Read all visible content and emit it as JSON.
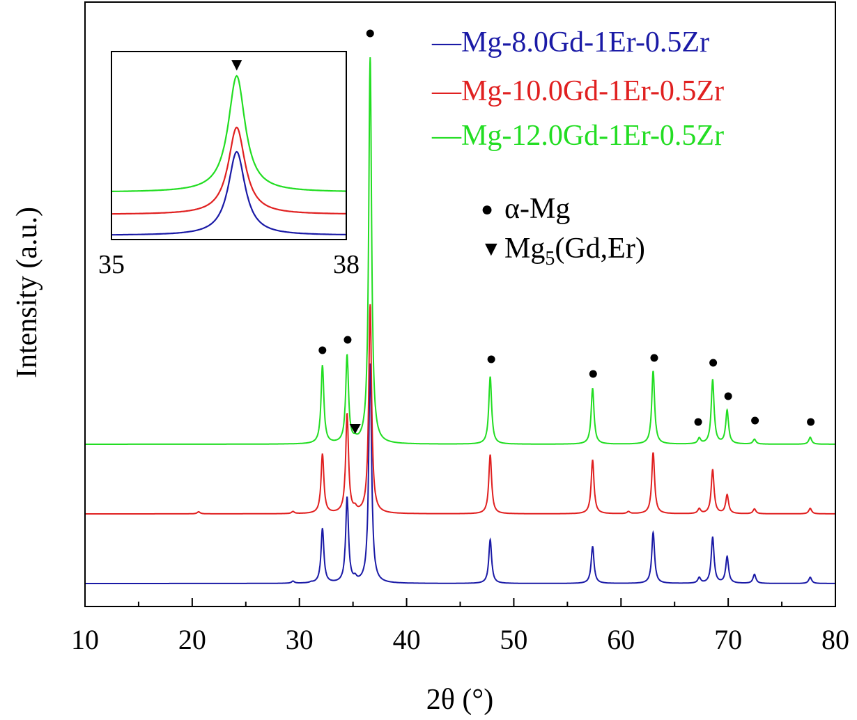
{
  "chart_data": {
    "type": "line",
    "xlabel": "2θ (°)",
    "ylabel": "Intensity (a.u.)",
    "xlim": [
      10,
      80
    ],
    "x_ticks": [
      "10",
      "20",
      "30",
      "40",
      "50",
      "60",
      "70",
      "80"
    ],
    "grid": false,
    "legend_position": "top-right",
    "peak_width": 0.16,
    "series": [
      {
        "name": "—Mg-8.0Gd-1Er-0.5Zr",
        "color": "#1a1aa6",
        "baseline": 0,
        "peaks": [
          [
            29.4,
            3
          ],
          [
            31.1,
            1
          ],
          [
            32.15,
            78
          ],
          [
            34.45,
            122
          ],
          [
            35.2,
            5
          ],
          [
            36.6,
            315
          ],
          [
            47.8,
            63
          ],
          [
            57.35,
            53
          ],
          [
            63.0,
            73
          ],
          [
            67.3,
            8
          ],
          [
            68.55,
            66
          ],
          [
            69.9,
            38
          ],
          [
            72.45,
            13
          ],
          [
            77.65,
            9
          ]
        ]
      },
      {
        "name": "—Mg-10.0Gd-1Er-0.5Zr",
        "color": "#e02020",
        "baseline": 100,
        "peaks": [
          [
            20.6,
            3
          ],
          [
            29.4,
            3
          ],
          [
            32.15,
            85
          ],
          [
            34.45,
            142
          ],
          [
            35.2,
            5
          ],
          [
            36.6,
            300
          ],
          [
            47.8,
            85
          ],
          [
            57.35,
            77
          ],
          [
            60.7,
            3
          ],
          [
            63.0,
            88
          ],
          [
            67.3,
            7
          ],
          [
            68.55,
            63
          ],
          [
            69.9,
            27
          ],
          [
            72.45,
            7
          ],
          [
            77.65,
            8
          ]
        ]
      },
      {
        "name": "—Mg-12.0Gd-1Er-0.5Zr",
        "color": "#22dd22",
        "baseline": 200,
        "peaks": [
          [
            32.15,
            112
          ],
          [
            34.45,
            125
          ],
          [
            35.2,
            3
          ],
          [
            36.6,
            555
          ],
          [
            47.8,
            97
          ],
          [
            57.35,
            80
          ],
          [
            63.0,
            105
          ],
          [
            67.3,
            8
          ],
          [
            68.55,
            92
          ],
          [
            69.9,
            48
          ],
          [
            72.45,
            7
          ],
          [
            77.65,
            10
          ]
        ]
      }
    ],
    "markers": {
      "alpha_mg": {
        "symbol": "●",
        "label": "α-Mg",
        "positions": [
          [
            32.15,
            335
          ],
          [
            34.5,
            350
          ],
          [
            36.6,
            790
          ],
          [
            47.9,
            322
          ],
          [
            57.4,
            301
          ],
          [
            63.1,
            324
          ],
          [
            67.2,
            232
          ],
          [
            68.6,
            317
          ],
          [
            70.0,
            269
          ],
          [
            72.5,
            234
          ],
          [
            77.7,
            232
          ]
        ]
      },
      "mg5": {
        "symbol": "▼",
        "label_prefix": "Mg",
        "label_sub": "5",
        "label_suffix": "(Gd,Er)",
        "positions": [
          [
            35.2,
            222
          ]
        ]
      }
    },
    "inset": {
      "xlim": [
        35,
        38
      ],
      "x_ticks": [
        "35",
        "38"
      ],
      "marker_x": 36.6,
      "peak_center": 36.6,
      "series": [
        {
          "color": "#1a1aa6",
          "baseline": 0,
          "height": 120
        },
        {
          "color": "#e02020",
          "baseline": 30,
          "height": 125
        },
        {
          "color": "#22dd22",
          "baseline": 62,
          "height": 167
        }
      ]
    }
  }
}
